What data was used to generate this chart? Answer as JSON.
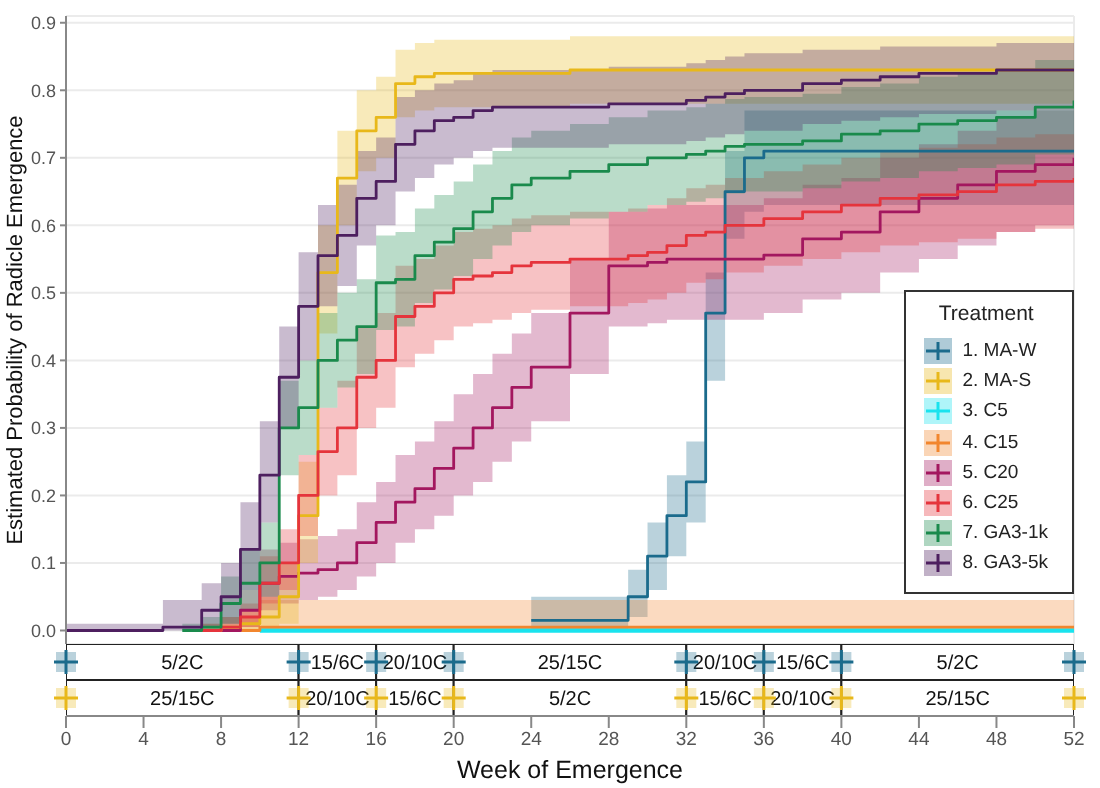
{
  "chart_data": [
    {
      "type": "step",
      "ylabel": "Estimated Probability of Radicle Emergence",
      "legend_title": "Treatment",
      "legend": "bottom right",
      "grid": true,
      "tick_labels": "y",
      "xlim": [
        0,
        52
      ],
      "xticks": [
        0,
        4,
        8,
        12,
        16,
        20,
        24,
        28,
        32,
        36,
        40,
        44,
        48,
        52
      ],
      "ylim": [
        -0.02,
        0.91
      ],
      "yticks": [
        {
          "value": 0,
          "label": "0.0"
        },
        {
          "value": 0.1,
          "label": "0.1"
        },
        {
          "value": 0.2,
          "label": "0.2"
        },
        {
          "value": 0.3,
          "label": "0.3"
        },
        {
          "value": 0.4,
          "label": "0.4"
        },
        {
          "value": 0.5,
          "label": "0.5"
        },
        {
          "value": 0.6,
          "label": "0.6"
        },
        {
          "value": 0.7,
          "label": "0.7"
        },
        {
          "value": 0.8,
          "label": "0.8"
        },
        {
          "value": 0.9,
          "label": "0.9"
        }
      ],
      "x": [
        0,
        5,
        6,
        7,
        8,
        9,
        10,
        11,
        12,
        13,
        14,
        15,
        16,
        17,
        18,
        19,
        20,
        21,
        22,
        23,
        24,
        26,
        28,
        29,
        30,
        31,
        32,
        33,
        34,
        35,
        36,
        38,
        40,
        42,
        44,
        46,
        48,
        50,
        52
      ],
      "series": [
        {
          "name": "1. MA-W",
          "color": "#1b6b8c",
          "values": [
            null,
            null,
            null,
            null,
            null,
            null,
            null,
            null,
            null,
            null,
            null,
            null,
            null,
            null,
            null,
            null,
            null,
            null,
            null,
            null,
            0.015,
            0.015,
            0.015,
            0.05,
            0.11,
            0.17,
            0.22,
            0.47,
            0.65,
            0.7,
            0.71,
            0.71,
            0.71,
            0.71,
            0.71,
            0.71,
            0.71,
            0.71,
            0.71
          ],
          "lower": [
            null,
            null,
            null,
            null,
            null,
            null,
            null,
            null,
            null,
            null,
            null,
            null,
            null,
            null,
            null,
            null,
            null,
            null,
            null,
            null,
            0,
            0,
            0,
            0.02,
            0.06,
            0.11,
            0.16,
            0.37,
            0.58,
            0.62,
            0.63,
            0.63,
            0.63,
            0.63,
            0.63,
            0.63,
            0.63,
            0.63,
            0.63
          ],
          "upper": [
            null,
            null,
            null,
            null,
            null,
            null,
            null,
            null,
            null,
            null,
            null,
            null,
            null,
            null,
            null,
            null,
            null,
            null,
            null,
            null,
            0.05,
            0.05,
            0.05,
            0.09,
            0.16,
            0.23,
            0.28,
            0.53,
            0.71,
            0.77,
            0.77,
            0.77,
            0.77,
            0.77,
            0.77,
            0.77,
            0.77,
            0.77,
            0.77
          ]
        },
        {
          "name": "2. MA-S",
          "color": "#e8b81a",
          "values": [
            null,
            null,
            null,
            0,
            0.005,
            0.01,
            0.02,
            0.05,
            0.17,
            0.53,
            0.67,
            0.74,
            0.76,
            0.81,
            0.82,
            0.825,
            0.825,
            0.825,
            0.825,
            0.825,
            0.825,
            0.83,
            0.83,
            0.83,
            0.83,
            0.83,
            0.83,
            0.83,
            0.83,
            0.83,
            0.83,
            0.83,
            0.83,
            0.83,
            0.83,
            0.83,
            0.83,
            0.83,
            0.83
          ],
          "lower": [
            null,
            null,
            null,
            0,
            0,
            0,
            0,
            0.01,
            0.1,
            0.44,
            0.6,
            0.68,
            0.7,
            0.76,
            0.77,
            0.775,
            0.775,
            0.775,
            0.775,
            0.775,
            0.775,
            0.78,
            0.78,
            0.78,
            0.78,
            0.78,
            0.78,
            0.78,
            0.78,
            0.78,
            0.78,
            0.78,
            0.78,
            0.78,
            0.78,
            0.78,
            0.78,
            0.78,
            0.78
          ],
          "upper": [
            null,
            null,
            null,
            0.01,
            0.02,
            0.03,
            0.05,
            0.1,
            0.25,
            0.6,
            0.74,
            0.8,
            0.82,
            0.86,
            0.87,
            0.875,
            0.875,
            0.875,
            0.875,
            0.875,
            0.875,
            0.88,
            0.88,
            0.88,
            0.88,
            0.88,
            0.88,
            0.88,
            0.88,
            0.88,
            0.88,
            0.88,
            0.88,
            0.88,
            0.88,
            0.88,
            0.88,
            0.88,
            0.88
          ]
        },
        {
          "name": "3. C5",
          "color": "#19e3ee",
          "values": [
            null,
            null,
            null,
            null,
            null,
            null,
            0,
            0,
            0,
            0,
            0,
            0,
            0,
            0,
            0,
            0,
            0,
            0,
            0,
            0,
            0,
            0,
            0,
            0,
            0,
            0,
            0,
            0,
            0,
            0,
            0,
            0,
            0,
            0,
            0,
            0,
            0,
            0,
            0
          ]
        },
        {
          "name": "4. C15",
          "color": "#f2862e",
          "values": [
            null,
            null,
            null,
            null,
            null,
            0,
            0.005,
            0.005,
            0.005,
            0.005,
            0.005,
            0.005,
            0.005,
            0.005,
            0.005,
            0.005,
            0.005,
            0.005,
            0.005,
            0.005,
            0.005,
            0.005,
            0.005,
            0.005,
            0.005,
            0.005,
            0.005,
            0.005,
            0.005,
            0.005,
            0.005,
            0.005,
            0.005,
            0.005,
            0.005,
            0.005,
            0.005,
            0.005,
            0.005
          ],
          "lower": [
            null,
            null,
            null,
            null,
            null,
            0,
            0,
            0,
            0,
            0,
            0,
            0,
            0,
            0,
            0,
            0,
            0,
            0,
            0,
            0,
            0,
            0,
            0,
            0,
            0,
            0,
            0,
            0,
            0,
            0,
            0,
            0,
            0,
            0,
            0,
            0,
            0,
            0,
            0
          ],
          "upper": [
            null,
            null,
            null,
            null,
            null,
            0.02,
            0.045,
            0.045,
            0.045,
            0.045,
            0.045,
            0.045,
            0.045,
            0.045,
            0.045,
            0.045,
            0.045,
            0.045,
            0.045,
            0.045,
            0.045,
            0.045,
            0.045,
            0.045,
            0.045,
            0.045,
            0.045,
            0.045,
            0.045,
            0.045,
            0.045,
            0.045,
            0.045,
            0.045,
            0.045,
            0.045,
            0.045,
            0.045,
            0.045
          ]
        },
        {
          "name": "5. C20",
          "color": "#a3175f",
          "values": [
            null,
            null,
            null,
            null,
            0,
            0.03,
            0.07,
            0.08,
            0.085,
            0.09,
            0.1,
            0.13,
            0.16,
            0.19,
            0.21,
            0.24,
            0.27,
            0.3,
            0.33,
            0.36,
            0.39,
            0.47,
            0.54,
            0.54,
            0.545,
            0.55,
            0.55,
            0.55,
            0.55,
            0.55,
            0.556,
            0.58,
            0.59,
            0.62,
            0.64,
            0.66,
            0.68,
            0.69,
            0.7
          ],
          "lower": [
            null,
            null,
            null,
            null,
            0,
            0.005,
            0.03,
            0.04,
            0.045,
            0.05,
            0.06,
            0.08,
            0.1,
            0.13,
            0.15,
            0.17,
            0.2,
            0.22,
            0.25,
            0.28,
            0.31,
            0.38,
            0.45,
            0.45,
            0.455,
            0.46,
            0.46,
            0.46,
            0.46,
            0.46,
            0.47,
            0.49,
            0.5,
            0.53,
            0.55,
            0.57,
            0.59,
            0.6,
            0.61
          ],
          "upper": [
            null,
            null,
            null,
            null,
            0.01,
            0.06,
            0.12,
            0.13,
            0.135,
            0.14,
            0.15,
            0.19,
            0.22,
            0.26,
            0.28,
            0.31,
            0.35,
            0.38,
            0.41,
            0.44,
            0.47,
            0.55,
            0.62,
            0.62,
            0.625,
            0.63,
            0.63,
            0.63,
            0.63,
            0.63,
            0.64,
            0.66,
            0.67,
            0.7,
            0.72,
            0.74,
            0.76,
            0.77,
            0.78
          ]
        },
        {
          "name": "6. C25",
          "color": "#e5343c",
          "values": [
            null,
            null,
            null,
            0,
            0.005,
            0.02,
            0.07,
            0.1,
            0.2,
            0.265,
            0.3,
            0.375,
            0.4,
            0.465,
            0.48,
            0.5,
            0.52,
            0.525,
            0.53,
            0.54,
            0.545,
            0.55,
            0.55,
            0.555,
            0.56,
            0.57,
            0.585,
            0.59,
            0.6,
            0.6,
            0.61,
            0.62,
            0.63,
            0.64,
            0.645,
            0.65,
            0.66,
            0.665,
            0.67
          ],
          "lower": [
            null,
            null,
            null,
            0,
            0,
            0.005,
            0.04,
            0.06,
            0.14,
            0.2,
            0.23,
            0.3,
            0.33,
            0.39,
            0.41,
            0.43,
            0.45,
            0.455,
            0.46,
            0.47,
            0.475,
            0.48,
            0.48,
            0.485,
            0.49,
            0.5,
            0.515,
            0.52,
            0.53,
            0.53,
            0.54,
            0.55,
            0.56,
            0.57,
            0.575,
            0.58,
            0.59,
            0.595,
            0.6
          ],
          "upper": [
            null,
            null,
            null,
            0.01,
            0.02,
            0.04,
            0.11,
            0.15,
            0.26,
            0.33,
            0.37,
            0.45,
            0.47,
            0.54,
            0.55,
            0.57,
            0.59,
            0.595,
            0.6,
            0.61,
            0.615,
            0.62,
            0.62,
            0.625,
            0.63,
            0.64,
            0.655,
            0.66,
            0.67,
            0.67,
            0.68,
            0.69,
            0.7,
            0.71,
            0.715,
            0.72,
            0.73,
            0.735,
            0.74
          ]
        },
        {
          "name": "7. GA3-1k",
          "color": "#1a8a4c",
          "values": [
            null,
            null,
            0,
            0.005,
            0.04,
            0.07,
            0.1,
            0.3,
            0.33,
            0.4,
            0.43,
            0.45,
            0.515,
            0.52,
            0.555,
            0.575,
            0.595,
            0.62,
            0.64,
            0.66,
            0.67,
            0.68,
            0.69,
            0.69,
            0.7,
            0.7,
            0.705,
            0.71,
            0.717,
            0.72,
            0.72,
            0.725,
            0.735,
            0.74,
            0.75,
            0.755,
            0.76,
            0.775,
            0.785
          ],
          "lower": [
            null,
            null,
            0,
            0,
            0.01,
            0.03,
            0.05,
            0.23,
            0.26,
            0.33,
            0.36,
            0.38,
            0.445,
            0.45,
            0.485,
            0.505,
            0.525,
            0.55,
            0.57,
            0.59,
            0.6,
            0.61,
            0.62,
            0.62,
            0.63,
            0.63,
            0.635,
            0.64,
            0.647,
            0.65,
            0.65,
            0.655,
            0.665,
            0.67,
            0.68,
            0.685,
            0.69,
            0.705,
            0.715
          ],
          "upper": [
            null,
            null,
            0.01,
            0.02,
            0.08,
            0.12,
            0.16,
            0.37,
            0.4,
            0.47,
            0.5,
            0.52,
            0.585,
            0.59,
            0.625,
            0.645,
            0.665,
            0.69,
            0.71,
            0.73,
            0.74,
            0.75,
            0.76,
            0.76,
            0.77,
            0.77,
            0.775,
            0.78,
            0.787,
            0.79,
            0.79,
            0.795,
            0.805,
            0.81,
            0.82,
            0.825,
            0.83,
            0.845,
            0.855
          ]
        },
        {
          "name": "8. GA3-5k",
          "color": "#4d1f5f",
          "values": [
            0,
            0.005,
            0.005,
            0.03,
            0.05,
            0.12,
            0.23,
            0.375,
            0.48,
            0.555,
            0.585,
            0.64,
            0.665,
            0.72,
            0.74,
            0.755,
            0.76,
            0.77,
            0.775,
            0.775,
            0.775,
            0.775,
            0.78,
            0.78,
            0.78,
            0.78,
            0.785,
            0.79,
            0.795,
            0.8,
            0.8,
            0.81,
            0.815,
            0.82,
            0.825,
            0.825,
            0.83,
            0.83,
            0.83
          ],
          "lower": [
            0,
            0,
            0,
            0.005,
            0.01,
            0.06,
            0.16,
            0.3,
            0.4,
            0.48,
            0.51,
            0.57,
            0.6,
            0.65,
            0.67,
            0.69,
            0.7,
            0.71,
            0.715,
            0.715,
            0.715,
            0.715,
            0.72,
            0.72,
            0.72,
            0.72,
            0.725,
            0.73,
            0.735,
            0.74,
            0.74,
            0.75,
            0.755,
            0.76,
            0.765,
            0.765,
            0.77,
            0.77,
            0.77
          ],
          "upper": [
            0.01,
            0.045,
            0.045,
            0.07,
            0.1,
            0.19,
            0.31,
            0.45,
            0.56,
            0.63,
            0.66,
            0.71,
            0.73,
            0.79,
            0.8,
            0.81,
            0.815,
            0.825,
            0.83,
            0.83,
            0.83,
            0.83,
            0.835,
            0.835,
            0.835,
            0.835,
            0.84,
            0.845,
            0.85,
            0.855,
            0.855,
            0.86,
            0.86,
            0.865,
            0.865,
            0.865,
            0.87,
            0.87,
            0.87
          ]
        }
      ]
    },
    {
      "type": "bar",
      "orientation": "horizontal",
      "stacked": true,
      "categories": [
        null,
        null
      ],
      "xlabel": "Week of Emergence",
      "xlim": [
        0,
        52
      ],
      "xticks": [
        0,
        4,
        8,
        12,
        16,
        20,
        24,
        28,
        32,
        36,
        40,
        44,
        48,
        52
      ],
      "tick_labels": "x",
      "series": [
        {
          "color": "#ffffff",
          "values": [
            12,
            12
          ],
          "value_labels": [
            "5/2C",
            "25/15C"
          ]
        },
        {
          "color": "#ffffff",
          "values": [
            4,
            4
          ],
          "value_labels": [
            "15/6C",
            "20/10C"
          ]
        },
        {
          "color": "#ffffff",
          "values": [
            4,
            4
          ],
          "value_labels": [
            "20/10C",
            "15/6C"
          ]
        },
        {
          "color": "#ffffff",
          "values": [
            12,
            12
          ],
          "value_labels": [
            "25/15C",
            "5/2C"
          ]
        },
        {
          "color": "#ffffff",
          "values": [
            4,
            4
          ],
          "value_labels": [
            "20/10C",
            "15/6C"
          ]
        },
        {
          "color": "#ffffff",
          "values": [
            4,
            4
          ],
          "value_labels": [
            "15/6C",
            "20/10C"
          ]
        },
        {
          "color": "#ffffff",
          "values": [
            12,
            12
          ],
          "value_labels": [
            "5/2C",
            "25/15C"
          ]
        }
      ]
    }
  ]
}
